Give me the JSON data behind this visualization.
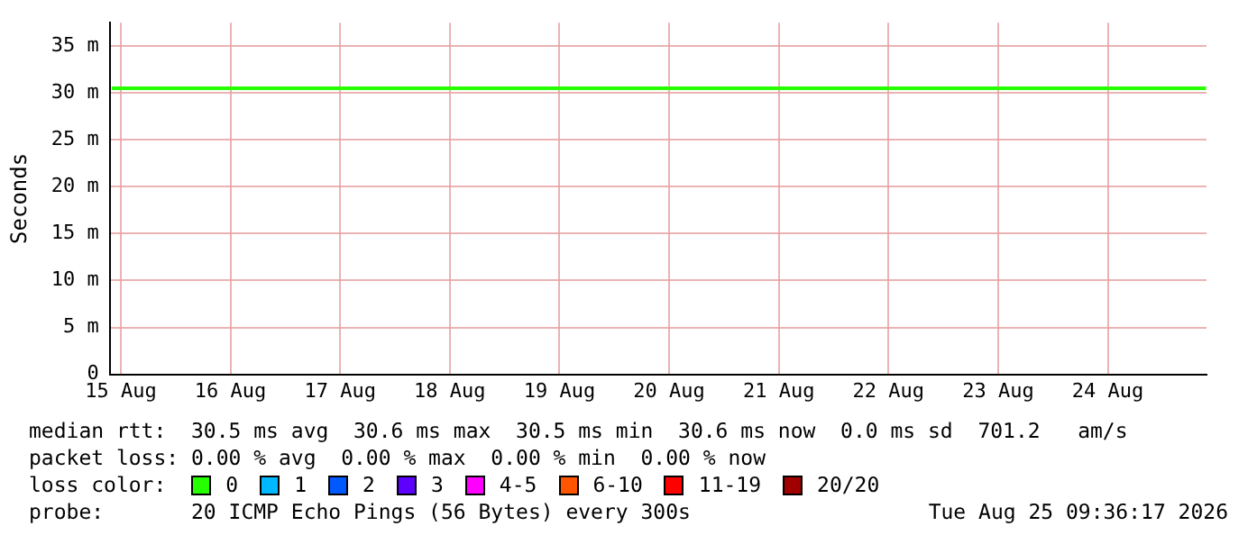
{
  "chart_data": {
    "type": "line",
    "ylabel": "Seconds",
    "legend_title": "loss color:",
    "legend": "bottom",
    "grid": true,
    "marker": "none",
    "line_style": "solid",
    "x": [
      "2026-08-15T10:00",
      "2026-08-15T22:00",
      "2026-08-16T10:00",
      "2026-08-16T22:00",
      "2026-08-17T10:00",
      "2026-08-17T22:00",
      "2026-08-18T10:00",
      "2026-08-18T22:00",
      "2026-08-19T10:00",
      "2026-08-19T22:00",
      "2026-08-20T10:00",
      "2026-08-20T22:00",
      "2026-08-21T10:00",
      "2026-08-21T22:00",
      "2026-08-22T10:00",
      "2026-08-22T22:00",
      "2026-08-23T10:00",
      "2026-08-23T22:00",
      "2026-08-24T10:00",
      "2026-08-24T22:00",
      "2026-08-25T09:30"
    ],
    "xlim": [
      "2026-08-15T09:36",
      "2026-08-25T09:36"
    ],
    "xticks": [
      {
        "value": "2026-08-15T12:00",
        "label": "15 Aug"
      },
      {
        "value": "2026-08-16T12:00",
        "label": "16 Aug"
      },
      {
        "value": "2026-08-17T12:00",
        "label": "17 Aug"
      },
      {
        "value": "2026-08-18T12:00",
        "label": "18 Aug"
      },
      {
        "value": "2026-08-19T12:00",
        "label": "19 Aug"
      },
      {
        "value": "2026-08-20T12:00",
        "label": "20 Aug"
      },
      {
        "value": "2026-08-21T12:00",
        "label": "21 Aug"
      },
      {
        "value": "2026-08-22T12:00",
        "label": "22 Aug"
      },
      {
        "value": "2026-08-23T12:00",
        "label": "23 Aug"
      },
      {
        "value": "2026-08-24T12:00",
        "label": "24 Aug"
      }
    ],
    "ylim": [
      0,
      37.5
    ],
    "yticks": [
      0,
      {
        "value": 5,
        "label": "5 m"
      },
      {
        "value": 10,
        "label": "10 m"
      },
      {
        "value": 15,
        "label": "15 m"
      },
      {
        "value": 20,
        "label": "20 m"
      },
      {
        "value": 25,
        "label": "25 m"
      },
      {
        "value": 30,
        "label": "30 m"
      },
      {
        "value": 35,
        "label": "35 m"
      }
    ],
    "series": [
      {
        "name": "0",
        "color": "#26ff00",
        "values": [
          30.5,
          30.5,
          30.5,
          30.5,
          30.5,
          30.5,
          30.5,
          30.5,
          30.5,
          30.5,
          30.5,
          30.5,
          30.5,
          30.5,
          30.5,
          30.5,
          30.5,
          30.5,
          30.5,
          30.5,
          30.5
        ]
      },
      {
        "name": "1",
        "color": "#00b8ff",
        "values": [
          null,
          null,
          null,
          null,
          null,
          null,
          null,
          null,
          null,
          null,
          null,
          null,
          null,
          null,
          null,
          null,
          null,
          null,
          null,
          null,
          null
        ]
      },
      {
        "name": "2",
        "color": "#0059ff",
        "values": [
          null,
          null,
          null,
          null,
          null,
          null,
          null,
          null,
          null,
          null,
          null,
          null,
          null,
          null,
          null,
          null,
          null,
          null,
          null,
          null,
          null
        ]
      },
      {
        "name": "3",
        "color": "#5e00ff",
        "values": [
          null,
          null,
          null,
          null,
          null,
          null,
          null,
          null,
          null,
          null,
          null,
          null,
          null,
          null,
          null,
          null,
          null,
          null,
          null,
          null,
          null
        ]
      },
      {
        "name": "4-5",
        "color": "#ff00ff",
        "values": [
          null,
          null,
          null,
          null,
          null,
          null,
          null,
          null,
          null,
          null,
          null,
          null,
          null,
          null,
          null,
          null,
          null,
          null,
          null,
          null,
          null
        ]
      },
      {
        "name": "6-10",
        "color": "#ff5500",
        "values": [
          null,
          null,
          null,
          null,
          null,
          null,
          null,
          null,
          null,
          null,
          null,
          null,
          null,
          null,
          null,
          null,
          null,
          null,
          null,
          null,
          null
        ]
      },
      {
        "name": "11-19",
        "color": "#ff0000",
        "values": [
          null,
          null,
          null,
          null,
          null,
          null,
          null,
          null,
          null,
          null,
          null,
          null,
          null,
          null,
          null,
          null,
          null,
          null,
          null,
          null,
          null
        ]
      },
      {
        "name": "20/20",
        "color": "#a10000",
        "values": [
          null,
          null,
          null,
          null,
          null,
          null,
          null,
          null,
          null,
          null,
          null,
          null,
          null,
          null,
          null,
          null,
          null,
          null,
          null,
          null,
          null
        ]
      }
    ],
    "annotations": [
      "median rtt:  30.5 ms avg  30.6 ms max  30.5 ms min  30.6 ms now  0.0 ms sd  701.2   am/s",
      "packet loss: 0.00 % avg  0.00 % max  0.00 % min  0.00 % now",
      "probe:       20 ICMP Echo Pings (56 Bytes) every 300s",
      "Tue Aug 25 09:36:17 2026"
    ]
  }
}
